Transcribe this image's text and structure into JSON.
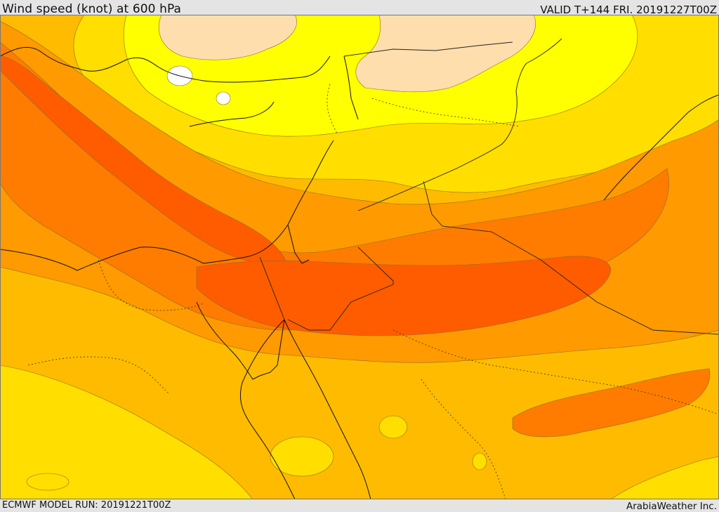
{
  "header": {
    "title": "Wind speed (knot) at 600 hPa",
    "valid": "VALID T+144 FRI. 20191227T00Z"
  },
  "footer": {
    "model_run": "ECMWF MODEL RUN: 20191221T00Z",
    "credit": "ArabiaWeather Inc."
  },
  "map": {
    "region": "Eastern Mediterranean, Levant and Arabian Peninsula",
    "field": "wind speed shading",
    "palette": {
      "calm": "#ffffff",
      "very_light": "#ffdead",
      "light": "#ffff00",
      "moderate": "#ffde00",
      "fresh": "#ffbb00",
      "strong": "#ff9a00",
      "very_strong": "#ff7c00",
      "jet_core": "#ff5c00"
    }
  }
}
